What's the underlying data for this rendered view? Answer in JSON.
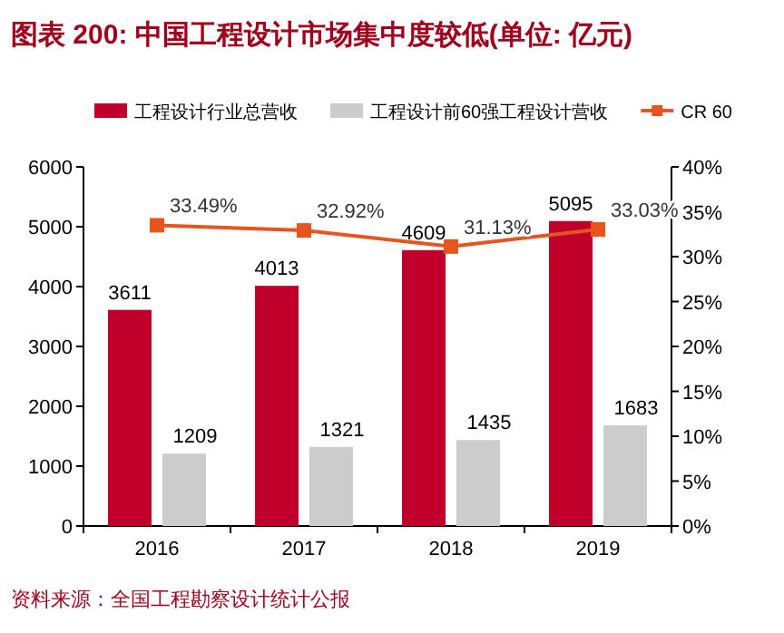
{
  "chart_data": {
    "type": "bar",
    "title": "图表 200: 中国工程设计市场集中度较低(单位: 亿元)",
    "categories": [
      "2016",
      "2017",
      "2018",
      "2019"
    ],
    "series": [
      {
        "name": "工程设计行业总营收",
        "color": "#c0002a",
        "values": [
          3611,
          4013,
          4609,
          5095
        ],
        "value_labels": [
          "3611",
          "4013",
          "4609",
          "5095"
        ]
      },
      {
        "name": "工程设计前60强工程设计营收",
        "color": "#cccccc",
        "values": [
          1209,
          1321,
          1435,
          1683
        ],
        "value_labels": [
          "1209",
          "1321",
          "1435",
          "1683"
        ]
      },
      {
        "name": "CR 60",
        "type": "line",
        "axis": "y2",
        "color": "#e8541e",
        "marker": "square",
        "values": [
          33.49,
          32.92,
          31.13,
          33.03
        ],
        "value_labels": [
          "33.49%",
          "32.92%",
          "31.13%",
          "33.03%"
        ]
      }
    ],
    "ylim": [
      0,
      6000
    ],
    "yticks": [
      0,
      1000,
      2000,
      3000,
      4000,
      5000,
      6000
    ],
    "y2lim": [
      0,
      40
    ],
    "y2ticks": [
      {
        "value": 0,
        "label": "0%"
      },
      {
        "value": 5,
        "label": "5%"
      },
      {
        "value": 10,
        "label": "10%"
      },
      {
        "value": 15,
        "label": "15%"
      },
      {
        "value": 20,
        "label": "20%"
      },
      {
        "value": 25,
        "label": "25%"
      },
      {
        "value": 30,
        "label": "30%"
      },
      {
        "value": 35,
        "label": "35%"
      },
      {
        "value": 40,
        "label": "40%"
      }
    ],
    "grid": false,
    "legend": "top",
    "annotations": [
      "资料来源：全国工程勘察设计统计公报"
    ]
  }
}
